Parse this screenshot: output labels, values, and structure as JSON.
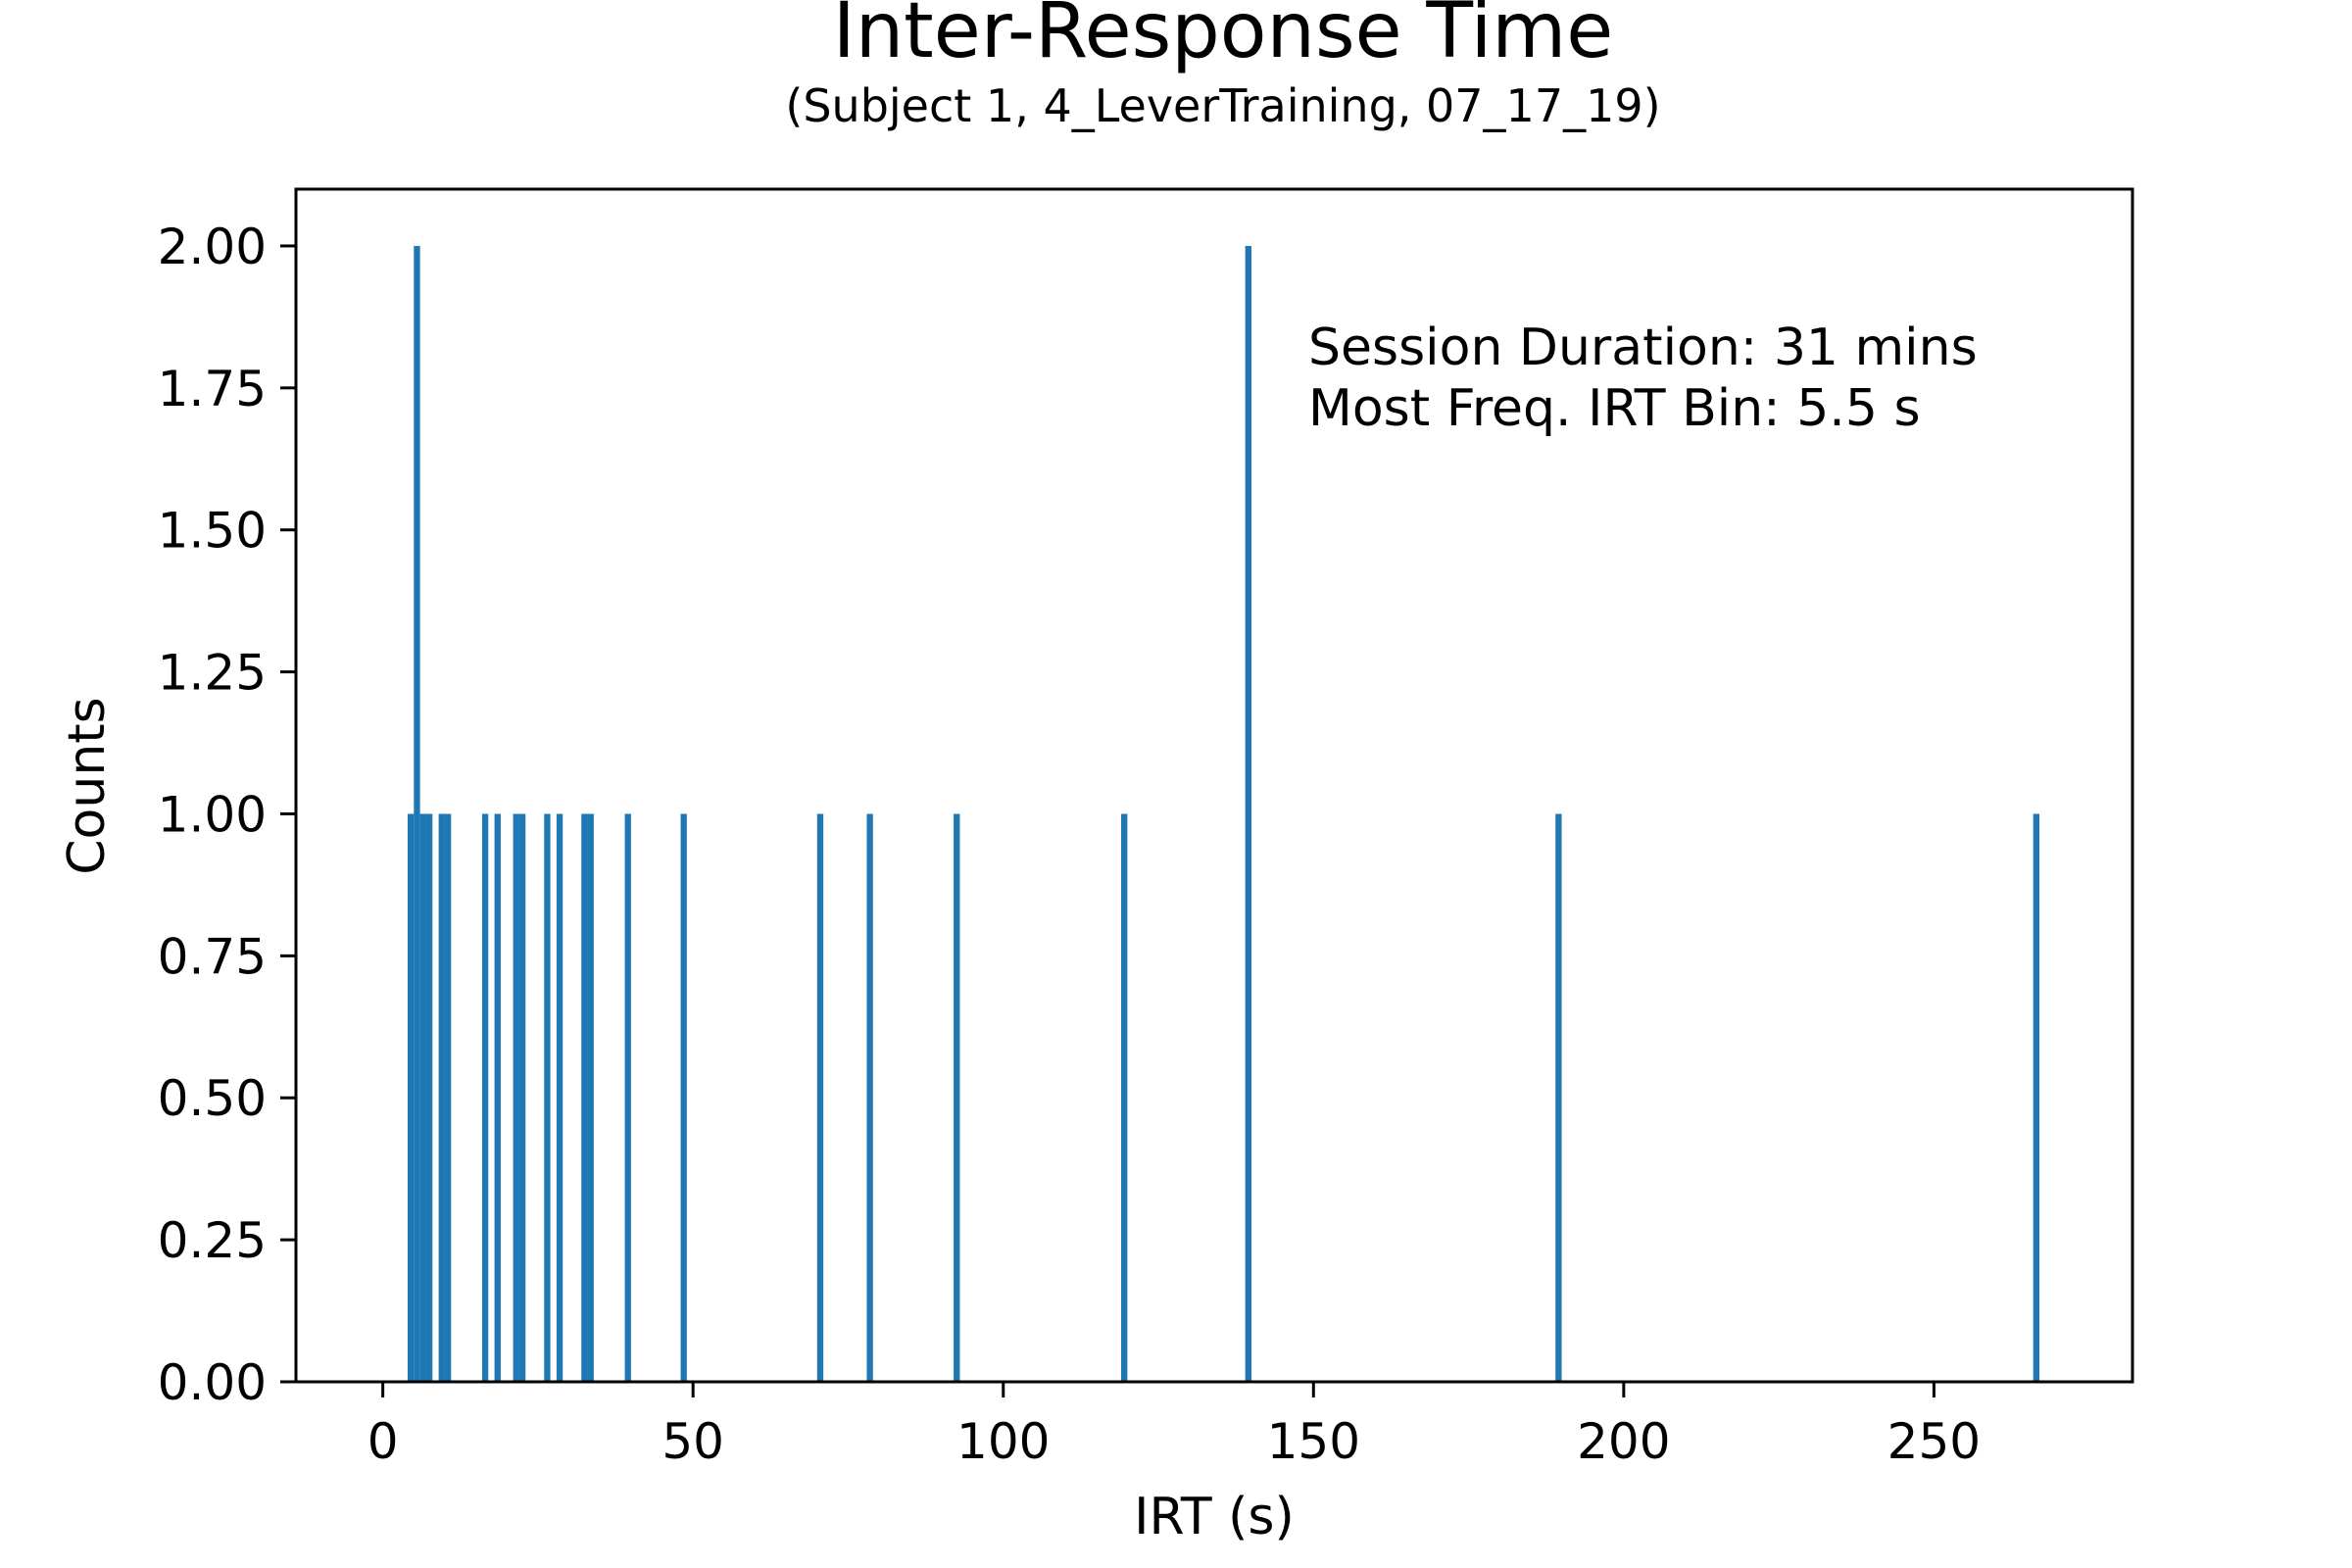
{
  "chart_data": {
    "type": "bar",
    "title": "Inter-Response Time",
    "subtitle": "(Subject 1, 4_LeverTraining, 07_17_19)",
    "xlabel": "IRT (s)",
    "ylabel": "Counts",
    "xlim": [
      -14,
      282
    ],
    "ylim": [
      0,
      2.1
    ],
    "x_ticks": [
      0,
      50,
      100,
      150,
      200,
      250
    ],
    "x_tick_labels": [
      "0",
      "50",
      "100",
      "150",
      "200",
      "250"
    ],
    "y_ticks": [
      0,
      0.25,
      0.5,
      0.75,
      1.0,
      1.25,
      1.5,
      1.75,
      2.0
    ],
    "y_tick_labels": [
      "0.00",
      "0.25",
      "0.50",
      "0.75",
      "1.00",
      "1.25",
      "1.50",
      "1.75",
      "2.00"
    ],
    "bin_width": 1,
    "grid": false,
    "bar_color": "#1f77b4",
    "bars": [
      {
        "x": 4.5,
        "count": 1
      },
      {
        "x": 5.5,
        "count": 2
      },
      {
        "x": 6.5,
        "count": 1
      },
      {
        "x": 7.5,
        "count": 1
      },
      {
        "x": 9.5,
        "count": 1
      },
      {
        "x": 10.5,
        "count": 1
      },
      {
        "x": 16.5,
        "count": 1
      },
      {
        "x": 18.5,
        "count": 1
      },
      {
        "x": 21.5,
        "count": 1
      },
      {
        "x": 22.5,
        "count": 1
      },
      {
        "x": 26.5,
        "count": 1
      },
      {
        "x": 28.5,
        "count": 1
      },
      {
        "x": 32.5,
        "count": 1
      },
      {
        "x": 33.5,
        "count": 1
      },
      {
        "x": 39.5,
        "count": 1
      },
      {
        "x": 48.5,
        "count": 1
      },
      {
        "x": 70.5,
        "count": 1
      },
      {
        "x": 78.5,
        "count": 1
      },
      {
        "x": 92.5,
        "count": 1
      },
      {
        "x": 119.5,
        "count": 1
      },
      {
        "x": 139.5,
        "count": 2
      },
      {
        "x": 189.5,
        "count": 1
      },
      {
        "x": 266.5,
        "count": 1
      }
    ],
    "annotations": [
      "Session Duration: 31 mins",
      "Most Freq. IRT Bin: 5.5 s"
    ],
    "annotation_placement": "top-right"
  }
}
